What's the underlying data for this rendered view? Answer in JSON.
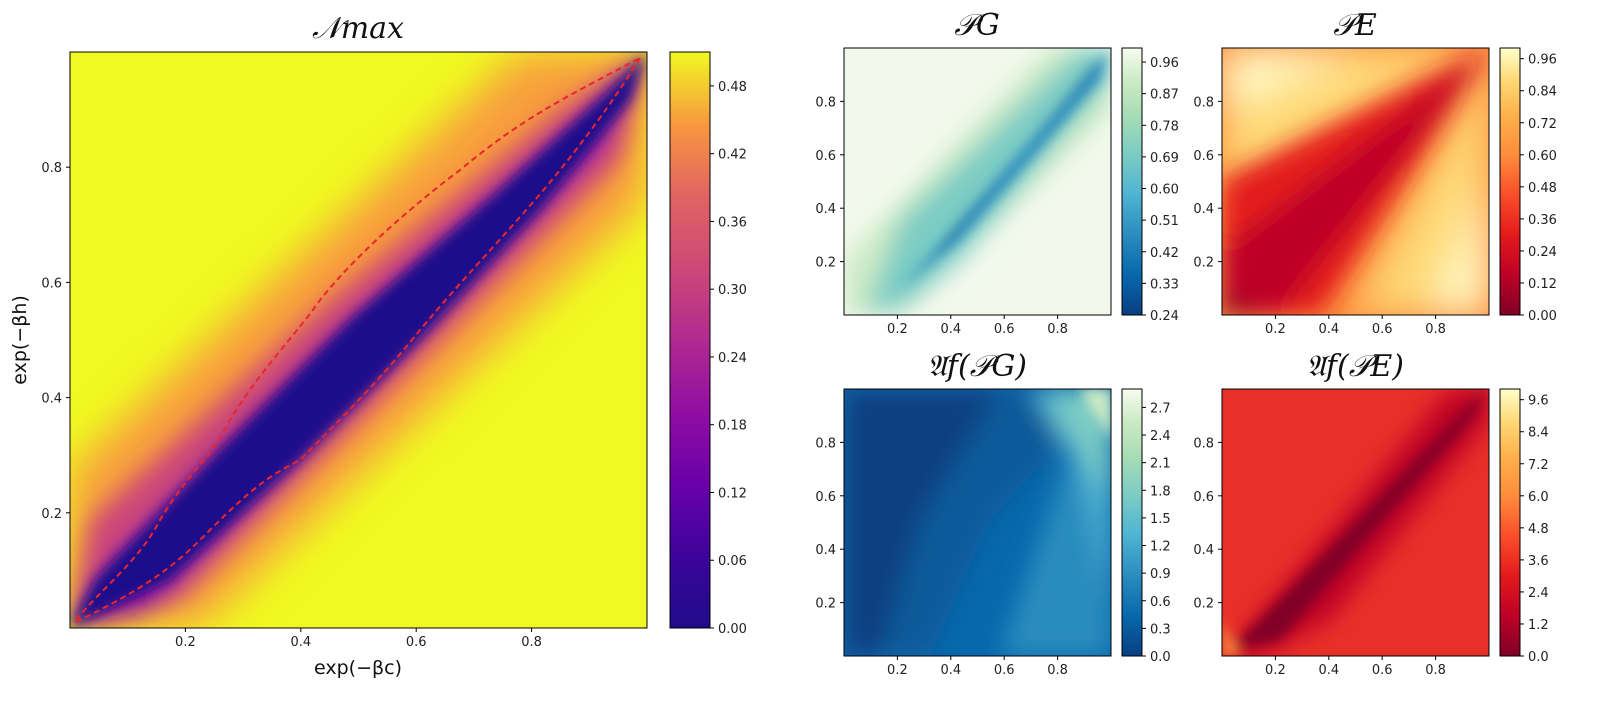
{
  "figure": {
    "panels": [
      {
        "id": "nmax",
        "title": "𝒩max",
        "cmap": "plasma",
        "xlabel": "exp(−βc)",
        "ylabel": "exp(−βh)",
        "colorbar_ticks": [
          "0.00",
          "0.06",
          "0.12",
          "0.18",
          "0.24",
          "0.30",
          "0.36",
          "0.42",
          "0.48"
        ],
        "colorbar_range": [
          0,
          0.51
        ],
        "contour_line": {
          "color": "#e8262e",
          "style": "dashed"
        }
      },
      {
        "id": "pg",
        "title": "𝒫G",
        "cmap": "GnBu",
        "colorbar_ticks": [
          "0.24",
          "0.33",
          "0.42",
          "0.51",
          "0.60",
          "0.69",
          "0.78",
          "0.87",
          "0.96"
        ],
        "colorbar_range": [
          0.24,
          1.0
        ]
      },
      {
        "id": "pe",
        "title": "𝒫E",
        "cmap": "YlOrRd",
        "colorbar_ticks": [
          "0.00",
          "0.12",
          "0.24",
          "0.36",
          "0.48",
          "0.60",
          "0.72",
          "0.84",
          "0.96"
        ],
        "colorbar_range": [
          0,
          1.0
        ]
      },
      {
        "id": "afpg",
        "title": "𝔄f(𝒫G)",
        "cmap": "GnBu",
        "colorbar_ticks": [
          "0.0",
          "0.3",
          "0.6",
          "0.9",
          "1.2",
          "1.5",
          "1.8",
          "2.1",
          "2.4",
          "2.7"
        ],
        "colorbar_range": [
          0,
          2.9
        ]
      },
      {
        "id": "afpe",
        "title": "𝔄f(𝒫E)",
        "cmap": "YlOrRd",
        "colorbar_ticks": [
          "0.0",
          "1.2",
          "2.4",
          "3.6",
          "4.8",
          "6.0",
          "7.2",
          "8.4",
          "9.6"
        ],
        "colorbar_range": [
          0,
          10.0
        ]
      }
    ],
    "axis_ticks": [
      "0.2",
      "0.4",
      "0.6",
      "0.8"
    ]
  },
  "chart_data": [
    {
      "type": "heatmap",
      "title": "𝒩max",
      "xlabel": "exp(−βc)",
      "ylabel": "exp(−βh)",
      "xlim": [
        0,
        1
      ],
      "ylim": [
        0,
        1
      ],
      "z_range": [
        0,
        0.51
      ],
      "colorbar_ticks": [
        0,
        0.06,
        0.12,
        0.18,
        0.24,
        0.3,
        0.36,
        0.42,
        0.48
      ],
      "cmap": "plasma",
      "annotation": "dashed red boundary of the zero region around the diagonal"
    },
    {
      "type": "heatmap",
      "title": "𝒫G",
      "xlim": [
        0,
        1
      ],
      "ylim": [
        0,
        1
      ],
      "z_range": [
        0.24,
        1.0
      ],
      "colorbar_ticks": [
        0.24,
        0.33,
        0.42,
        0.51,
        0.6,
        0.69,
        0.78,
        0.87,
        0.96
      ],
      "cmap": "GnBu"
    },
    {
      "type": "heatmap",
      "title": "𝒫E",
      "xlim": [
        0,
        1
      ],
      "ylim": [
        0,
        1
      ],
      "z_range": [
        0,
        1.0
      ],
      "colorbar_ticks": [
        0,
        0.12,
        0.24,
        0.36,
        0.48,
        0.6,
        0.72,
        0.84,
        0.96
      ],
      "cmap": "YlOrRd"
    },
    {
      "type": "heatmap",
      "title": "𝔄f(𝒫G)",
      "xlim": [
        0,
        1
      ],
      "ylim": [
        0,
        1
      ],
      "z_range": [
        0,
        2.9
      ],
      "colorbar_ticks": [
        0,
        0.3,
        0.6,
        0.9,
        1.2,
        1.5,
        1.8,
        2.1,
        2.4,
        2.7
      ],
      "cmap": "GnBu"
    },
    {
      "type": "heatmap",
      "title": "𝔄f(𝒫E)",
      "xlim": [
        0,
        1
      ],
      "ylim": [
        0,
        1
      ],
      "z_range": [
        0,
        10.0
      ],
      "colorbar_ticks": [
        0,
        1.2,
        2.4,
        3.6,
        4.8,
        6.0,
        7.2,
        8.4,
        9.6
      ],
      "cmap": "YlOrRd"
    }
  ]
}
